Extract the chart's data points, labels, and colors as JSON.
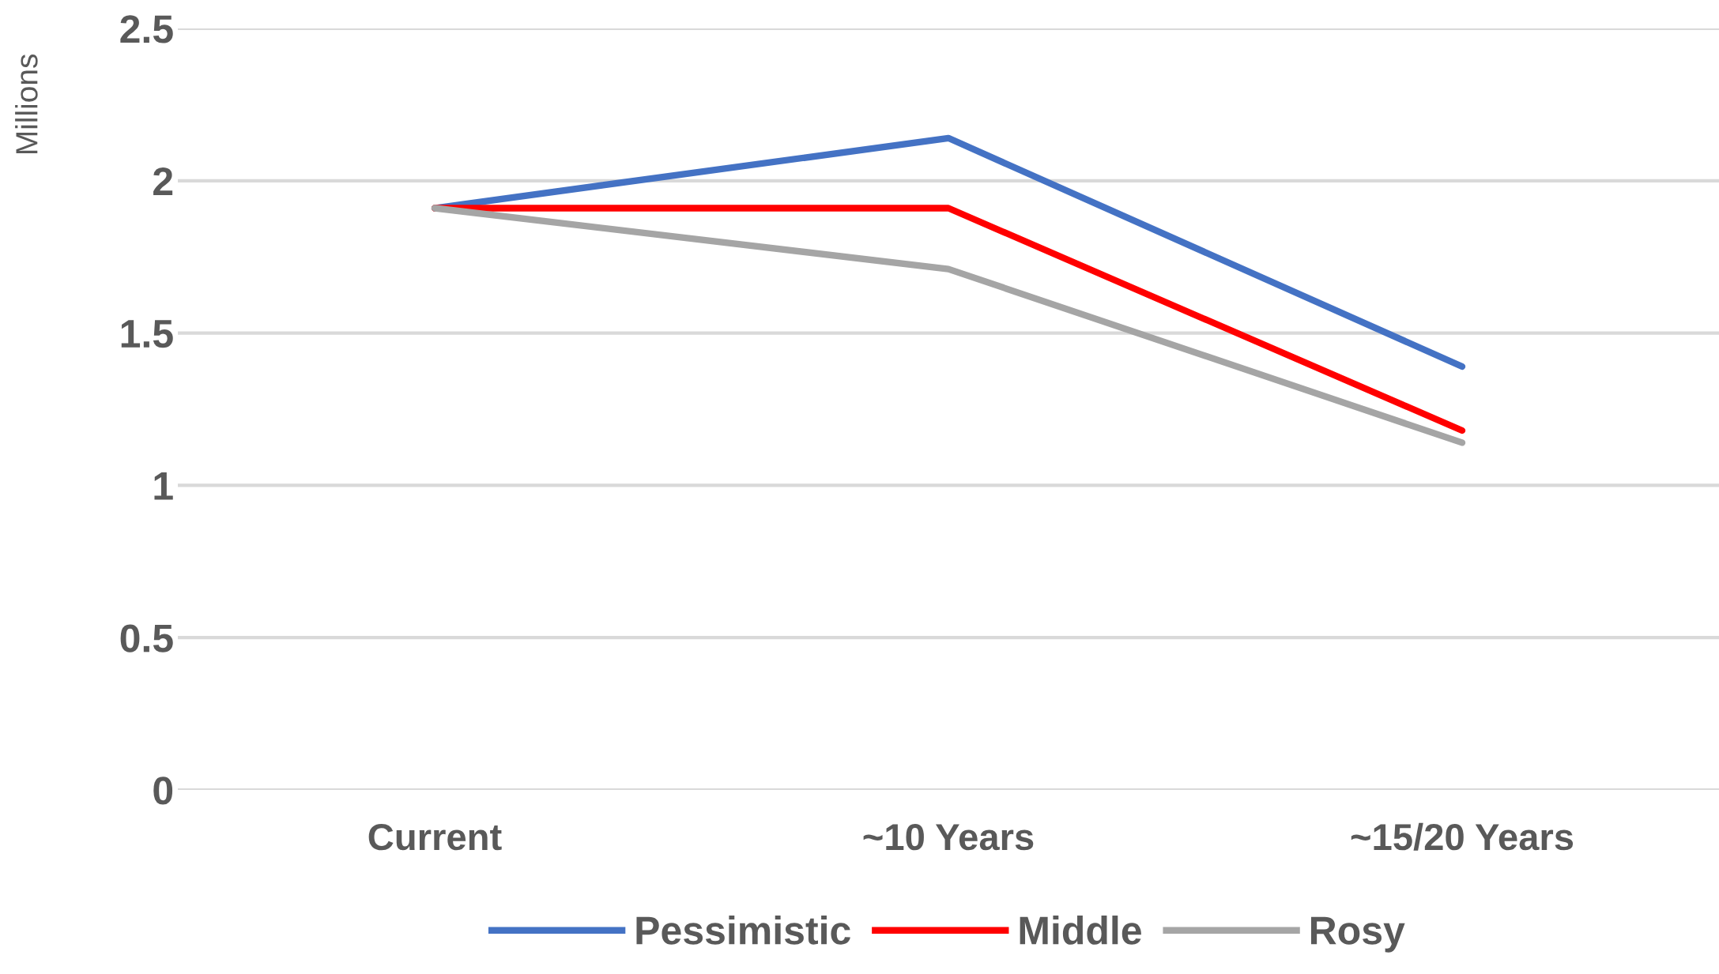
{
  "chart_data": {
    "type": "line",
    "ylabel": "Millions",
    "categories": [
      "Current",
      "~10 Years",
      "~15/20 Years"
    ],
    "series": [
      {
        "name": "Pessimistic",
        "color": "#4472c4",
        "values": [
          1.91,
          2.14,
          1.39
        ]
      },
      {
        "name": "Middle",
        "color": "#ff0000",
        "values": [
          1.91,
          1.91,
          1.18
        ]
      },
      {
        "name": "Rosy",
        "color": "#a5a5a5",
        "values": [
          1.91,
          1.71,
          1.14
        ]
      }
    ],
    "ylim": [
      0,
      2.5
    ],
    "yticks": [
      0,
      0.5,
      1,
      1.5,
      2,
      2.5
    ],
    "grid": "y",
    "legend": "bottom",
    "marker": "none",
    "line_style": "solid"
  }
}
